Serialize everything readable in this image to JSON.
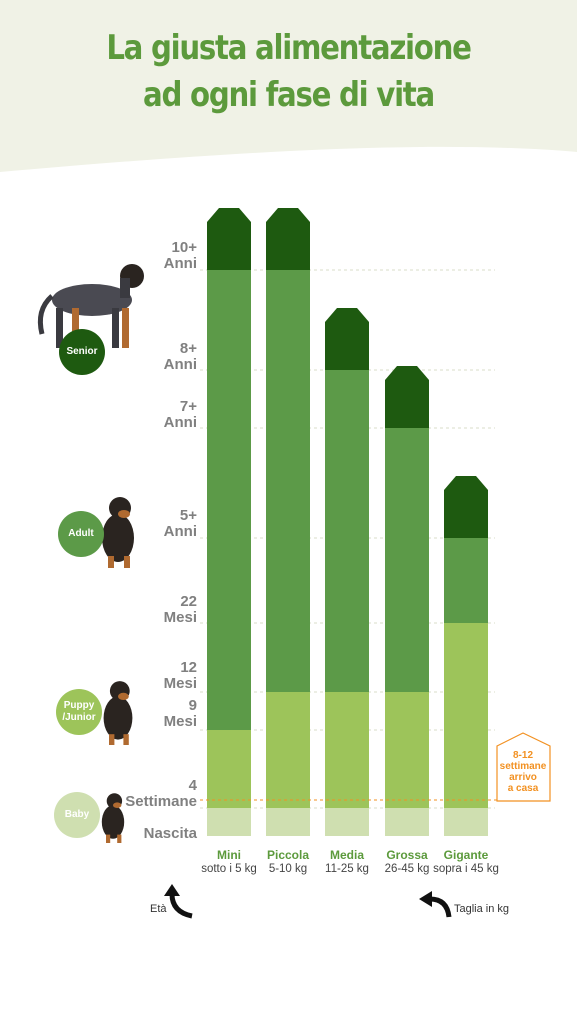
{
  "title": [
    "La giusta alimentazione",
    "ad ogni fase di vita"
  ],
  "colors": {
    "header_bg": "#f0f2e6",
    "title": "#5c9a3c",
    "baby": "#cfdfb0",
    "puppy": "#9dc45a",
    "adult": "#5c9a48",
    "senior": "#1e5a10",
    "marker": "#f29122"
  },
  "chart_data": {
    "type": "bar",
    "stacked": true,
    "y_ticks": [
      "Nascita",
      "4 Settimane",
      "9 Mesi",
      "12 Mesi",
      "22 Mesi",
      "5+ Anni",
      "7+ Anni",
      "8+ Anni",
      "10+ Anni"
    ],
    "categories": [
      {
        "name": "Mini",
        "weight": "sotto i 5 kg",
        "puppy_to": "9 Mesi",
        "adult_to": "10+ Anni"
      },
      {
        "name": "Piccola",
        "weight": "5-10 kg",
        "puppy_to": "12 Mesi",
        "adult_to": "10+ Anni"
      },
      {
        "name": "Media",
        "weight": "11-25 kg",
        "puppy_to": "12 Mesi",
        "adult_to": "8+ Anni"
      },
      {
        "name": "Grossa",
        "weight": "26-45 kg",
        "puppy_to": "12 Mesi",
        "adult_to": "7+ Anni"
      },
      {
        "name": "Gigante",
        "weight": "sopra i 45 kg",
        "puppy_to": "22 Mesi",
        "adult_to": "5+ Anni"
      }
    ],
    "stages": [
      "Baby",
      "Puppy / Junior",
      "Adult",
      "Senior"
    ],
    "marker": {
      "at": "4 Settimane",
      "label": "8-12 settimane arrivo a casa"
    },
    "x_arrow_label": "Taglia in kg",
    "y_arrow_label": "Età"
  },
  "stage_labels": {
    "senior": "Senior",
    "adult": "Adult",
    "puppy": "Puppy\n/Junior",
    "baby": "Baby"
  },
  "y_labels": [
    {
      "l1": "Nascita",
      "l2": ""
    },
    {
      "l1": "4",
      "l2": "Settimane"
    },
    {
      "l1": "9",
      "l2": "Mesi"
    },
    {
      "l1": "12",
      "l2": "Mesi"
    },
    {
      "l1": "22",
      "l2": "Mesi"
    },
    {
      "l1": "5+",
      "l2": "Anni"
    },
    {
      "l1": "7+",
      "l2": "Anni"
    },
    {
      "l1": "8+",
      "l2": "Anni"
    },
    {
      "l1": "10+",
      "l2": "Anni"
    }
  ],
  "marker_lines": [
    "8-12",
    "settimane",
    "arrivo",
    "a casa"
  ]
}
